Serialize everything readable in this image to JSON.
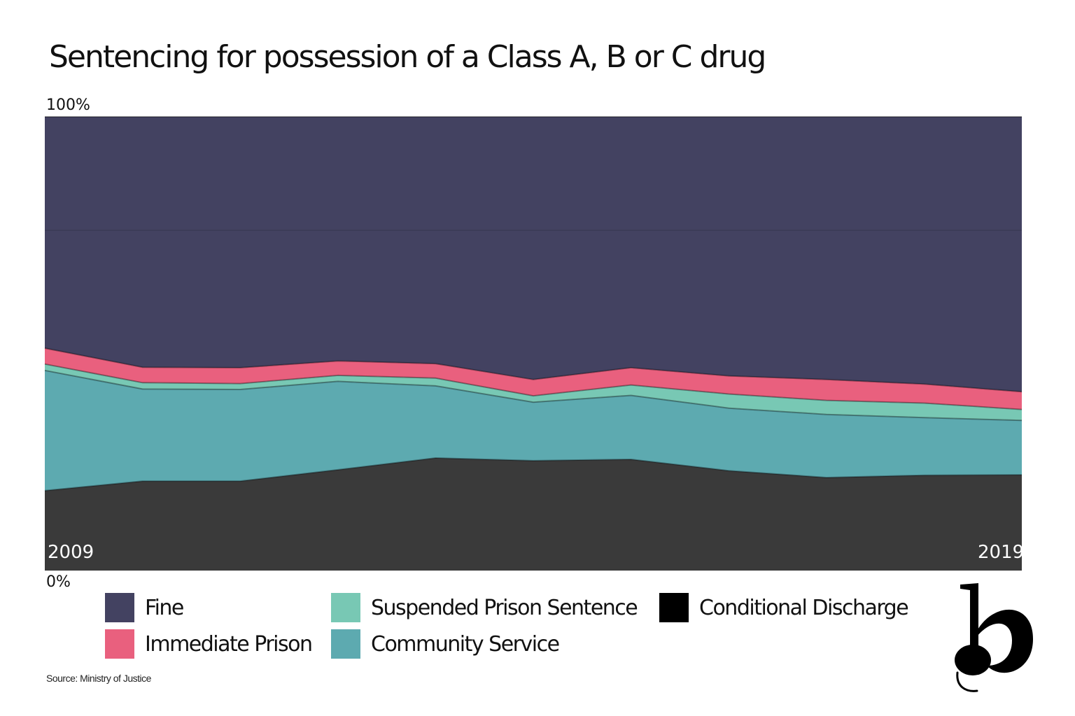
{
  "title": "Sentencing for possession of a Class A, B or C drug",
  "source": "Source: Ministry of Justice",
  "chart_data": {
    "type": "area",
    "stacked": true,
    "normalized": true,
    "title": "Sentencing for possession of a Class A, B or C drug",
    "x": [
      2009,
      2010,
      2011,
      2012,
      2013,
      2014,
      2015,
      2016,
      2017,
      2018,
      2019
    ],
    "x_tick_labels": [
      "2009",
      "2019"
    ],
    "y_tick_labels": {
      "top": "100%",
      "bottom": "0%"
    },
    "ylim": [
      0,
      100
    ],
    "grid": true,
    "legend_position": "bottom",
    "series": [
      {
        "name": "Conditional Discharge",
        "color": "#3a3a3a",
        "values": [
          17.6,
          19.7,
          19.7,
          22.2,
          24.8,
          24.2,
          24.5,
          22.0,
          20.5,
          21.0,
          21.1
        ]
      },
      {
        "name": "Community Service",
        "color": "#5daab0",
        "values": [
          26.5,
          20.3,
          20.2,
          19.5,
          15.9,
          12.9,
          14.1,
          13.8,
          13.9,
          12.7,
          12.0
        ]
      },
      {
        "name": "Suspended Prison Sentence",
        "color": "#78c8b4",
        "values": [
          1.4,
          1.4,
          1.3,
          1.3,
          1.7,
          1.4,
          2.3,
          3.1,
          3.1,
          3.2,
          2.4
        ]
      },
      {
        "name": "Immediate Prison",
        "color": "#e9607e",
        "values": [
          3.5,
          3.4,
          3.5,
          3.2,
          3.2,
          3.6,
          3.8,
          4.0,
          4.6,
          4.2,
          3.9
        ]
      },
      {
        "name": "Fine",
        "color": "#434261",
        "values": [
          51.0,
          55.2,
          55.3,
          53.8,
          54.4,
          57.9,
          55.3,
          57.1,
          57.9,
          58.9,
          60.6
        ]
      }
    ]
  },
  "legend": [
    {
      "label": "Fine",
      "color": "#434261"
    },
    {
      "label": "Immediate Prison",
      "color": "#e9607e"
    },
    {
      "label": "Suspended Prison Sentence",
      "color": "#78c8b4"
    },
    {
      "label": "Community Service",
      "color": "#5daab0"
    },
    {
      "label": "Conditional Discharge",
      "color": "#000000"
    }
  ],
  "logo": {
    "icon": "b-logo-icon",
    "color": "#000000"
  }
}
